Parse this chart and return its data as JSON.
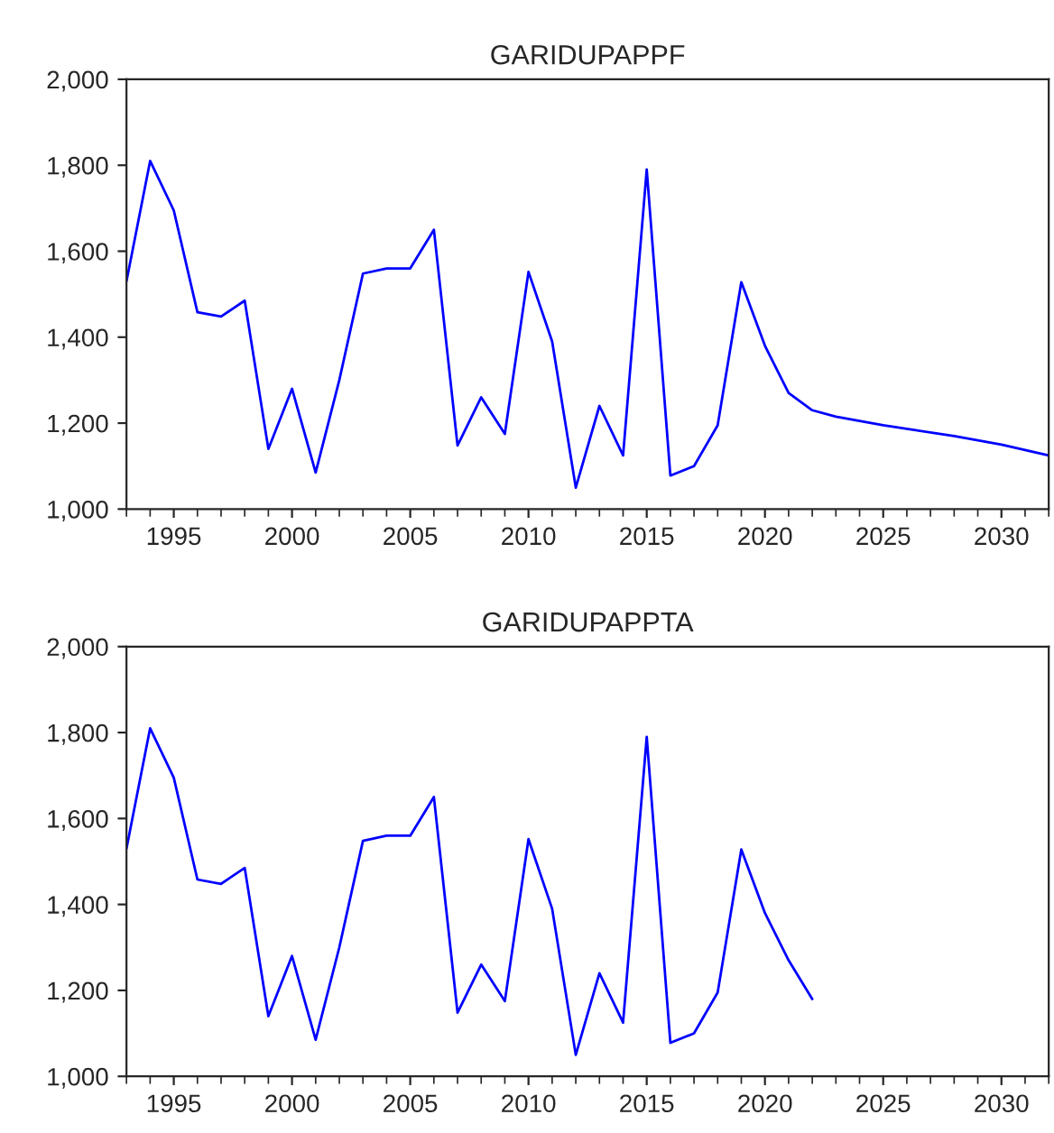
{
  "chart_data": [
    {
      "type": "line",
      "title": "GARIDUPAPPF",
      "x": [
        1993,
        1994,
        1995,
        1996,
        1997,
        1998,
        1999,
        2000,
        2001,
        2002,
        2003,
        2004,
        2005,
        2006,
        2007,
        2008,
        2009,
        2010,
        2011,
        2012,
        2013,
        2014,
        2015,
        2016,
        2017,
        2018,
        2019,
        2020,
        2021,
        2022,
        2023,
        2025,
        2028,
        2030,
        2032
      ],
      "series": [
        {
          "color": "#0000ff",
          "values": [
            1530,
            1810,
            1695,
            1458,
            1448,
            1485,
            1140,
            1280,
            1085,
            1300,
            1548,
            1560,
            1560,
            1650,
            1148,
            1260,
            1175,
            1552,
            1390,
            1050,
            1240,
            1125,
            1790,
            1078,
            1100,
            1195,
            1528,
            1380,
            1270,
            1230,
            1215,
            1195,
            1170,
            1150,
            1125
          ]
        }
      ],
      "xlim": [
        1993,
        2032
      ],
      "xticks": [
        1995,
        2000,
        2005,
        2010,
        2015,
        2020,
        2025,
        2030
      ],
      "ylim": [
        1000,
        2000
      ],
      "yticks": [
        {
          "value": 1000,
          "label": "1,000"
        },
        {
          "value": 1200,
          "label": "1,200"
        },
        {
          "value": 1400,
          "label": "1,400"
        },
        {
          "value": 1600,
          "label": "1,600"
        },
        {
          "value": 1800,
          "label": "1,800"
        },
        {
          "value": 2000,
          "label": "2,000"
        }
      ],
      "grid": false,
      "line_style": "solid"
    },
    {
      "type": "line",
      "title": "GARIDUPAPPTA",
      "x": [
        1993,
        1994,
        1995,
        1996,
        1997,
        1998,
        1999,
        2000,
        2001,
        2002,
        2003,
        2004,
        2005,
        2006,
        2007,
        2008,
        2009,
        2010,
        2011,
        2012,
        2013,
        2014,
        2015,
        2016,
        2017,
        2018,
        2019,
        2020,
        2021,
        2022
      ],
      "series": [
        {
          "color": "#0000ff",
          "values": [
            1530,
            1810,
            1695,
            1458,
            1448,
            1485,
            1140,
            1280,
            1085,
            1300,
            1548,
            1560,
            1560,
            1650,
            1148,
            1260,
            1175,
            1552,
            1390,
            1050,
            1240,
            1125,
            1790,
            1078,
            1100,
            1195,
            1528,
            1380,
            1270,
            1180
          ]
        }
      ],
      "xlim": [
        1993,
        2032
      ],
      "xticks": [
        1995,
        2000,
        2005,
        2010,
        2015,
        2020,
        2025,
        2030
      ],
      "ylim": [
        1000,
        2000
      ],
      "yticks": [
        {
          "value": 1000,
          "label": "1,000"
        },
        {
          "value": 1200,
          "label": "1,200"
        },
        {
          "value": 1400,
          "label": "1,400"
        },
        {
          "value": 1600,
          "label": "1,600"
        },
        {
          "value": 1800,
          "label": "1,800"
        },
        {
          "value": 2000,
          "label": "2,000"
        }
      ],
      "grid": false,
      "line_style": "solid"
    }
  ]
}
